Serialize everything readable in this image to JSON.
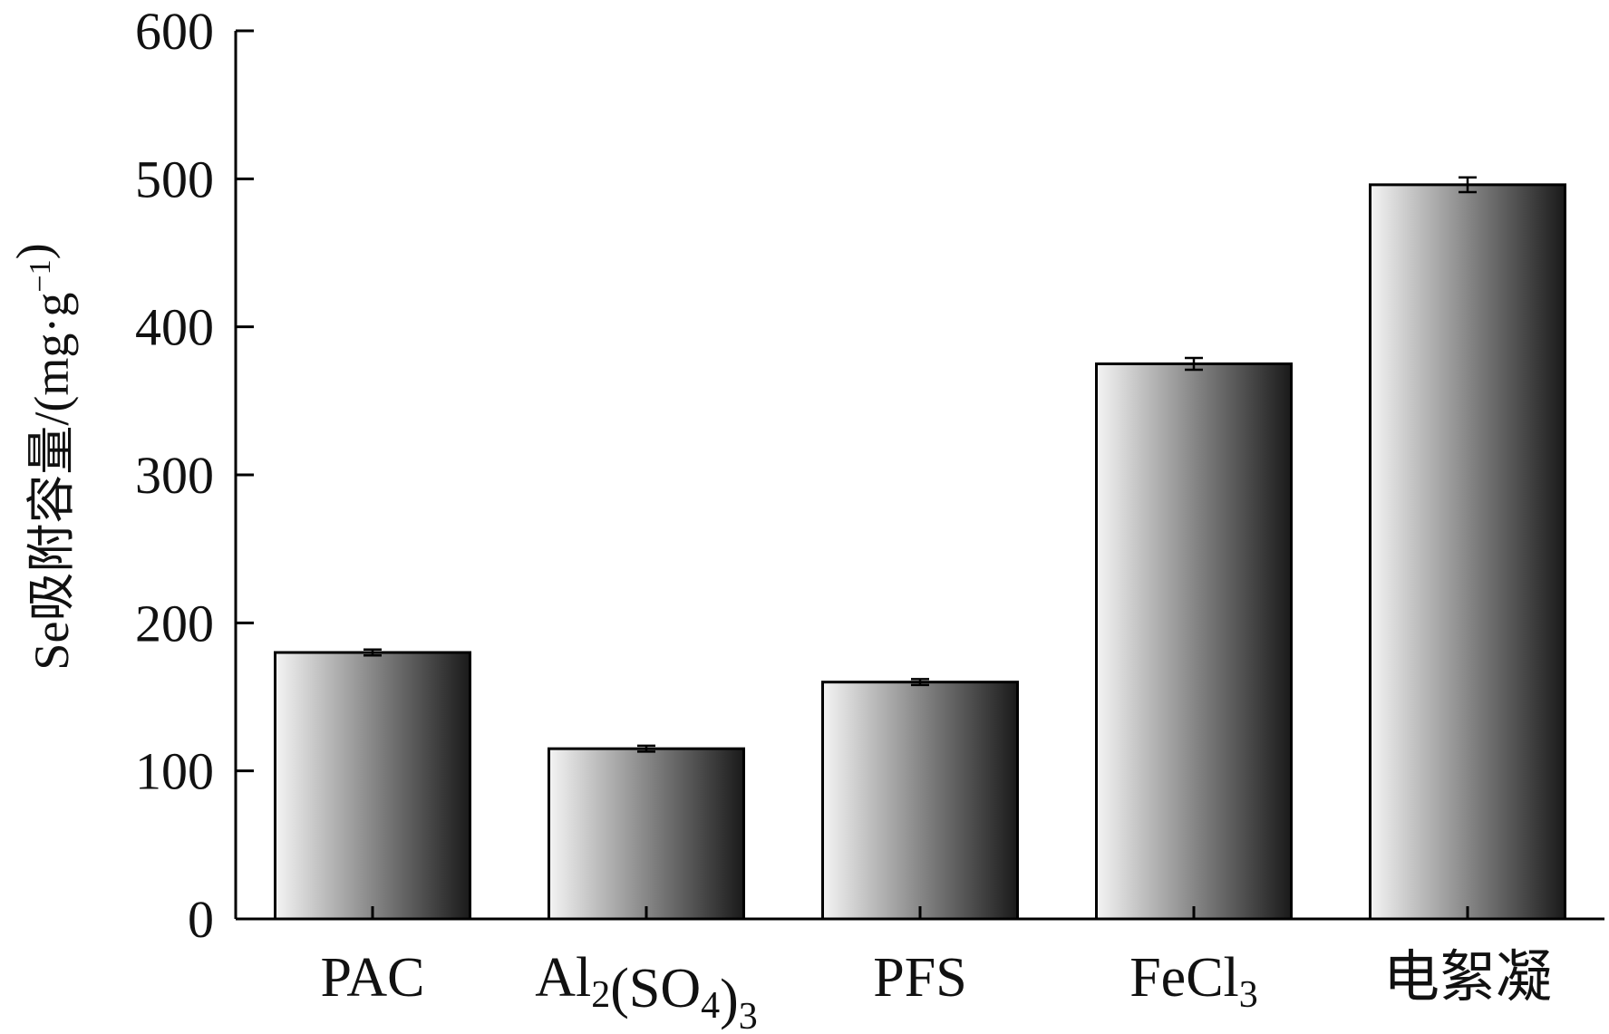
{
  "chart_data": {
    "type": "bar",
    "categories": [
      "PAC",
      "Al2(SO4)3",
      "PFS",
      "FeCl3",
      "电絮凝"
    ],
    "category_labels": [
      [
        {
          "t": "PAC",
          "s": ""
        }
      ],
      [
        {
          "t": "Al",
          "s": ""
        },
        {
          "t": "2",
          "s": "sub"
        },
        {
          "t": "(SO",
          "s": ""
        },
        {
          "t": "4",
          "s": "sub"
        },
        {
          "t": ")",
          "s": ""
        },
        {
          "t": "3",
          "s": "sub"
        }
      ],
      [
        {
          "t": "PFS",
          "s": ""
        }
      ],
      [
        {
          "t": "FeCl",
          "s": ""
        },
        {
          "t": "3",
          "s": "sub"
        }
      ],
      [
        {
          "t": "电絮凝",
          "s": ""
        }
      ]
    ],
    "values": [
      180,
      115,
      160,
      375,
      496
    ],
    "errors": [
      2,
      2,
      2,
      4,
      5
    ],
    "ylim": [
      0,
      600
    ],
    "yticks": [
      "0",
      "100",
      "200",
      "300",
      "400",
      "500",
      "600"
    ],
    "ylabel_parts": [
      {
        "t": "Se吸附容量/(mg·g",
        "s": ""
      },
      {
        "t": "−1",
        "s": "sup"
      },
      {
        "t": ")",
        "s": ""
      }
    ],
    "xlabel": "",
    "title": "",
    "grid": false,
    "legend": "none",
    "bar_gradient": [
      "#f4f4f4",
      "#1a1a1a"
    ]
  }
}
